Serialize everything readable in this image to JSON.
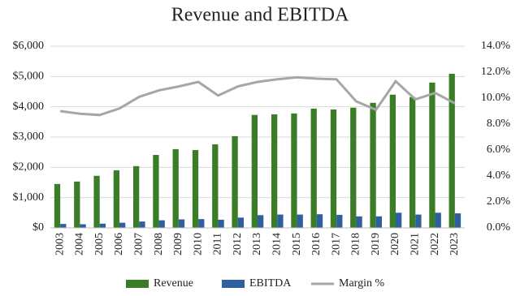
{
  "chart_data": {
    "type": "bar",
    "title": "Revenue and EBITDA",
    "categories": [
      "2003",
      "2004",
      "2005",
      "2006",
      "2007",
      "2008",
      "2009",
      "2010",
      "2011",
      "2012",
      "2013",
      "2014",
      "2015",
      "2016",
      "2017",
      "2018",
      "2019",
      "2020",
      "2021",
      "2022",
      "2023"
    ],
    "series": [
      {
        "name": "Revenue",
        "color": "#3b7d27",
        "values": [
          1450,
          1530,
          1720,
          1900,
          2040,
          2410,
          2600,
          2570,
          2760,
          3030,
          3730,
          3750,
          3780,
          3940,
          3910,
          3970,
          4130,
          4400,
          4320,
          4800,
          5090
        ]
      },
      {
        "name": "EBITDA",
        "color": "#2e5f9e",
        "values": [
          130,
          120,
          140,
          170,
          210,
          250,
          280,
          290,
          270,
          340,
          420,
          440,
          440,
          450,
          430,
          380,
          380,
          500,
          440,
          500,
          480
        ]
      },
      {
        "name": "Margin %",
        "color": "#a6a6a6",
        "type": "line",
        "axis": "y2",
        "values": [
          9.0,
          8.8,
          8.7,
          9.2,
          10.1,
          10.6,
          10.9,
          11.25,
          10.2,
          10.9,
          11.25,
          11.45,
          11.6,
          11.5,
          11.45,
          9.75,
          9.1,
          11.3,
          9.9,
          10.4,
          9.6
        ]
      }
    ],
    "ylim": [
      0,
      6000
    ],
    "yticks": [
      {
        "value": 0,
        "label": "$0"
      },
      {
        "value": 1000,
        "label": "$1,000"
      },
      {
        "value": 2000,
        "label": "$2,000"
      },
      {
        "value": 3000,
        "label": "$3,000"
      },
      {
        "value": 4000,
        "label": "$4,000"
      },
      {
        "value": 5000,
        "label": "$5,000"
      },
      {
        "value": 6000,
        "label": "$6,000"
      }
    ],
    "y2lim": [
      0,
      14
    ],
    "y2ticks": [
      {
        "value": 0,
        "label": "0.0%"
      },
      {
        "value": 2,
        "label": "2.0%"
      },
      {
        "value": 4,
        "label": "4.0%"
      },
      {
        "value": 6,
        "label": "6.0%"
      },
      {
        "value": 8,
        "label": "8.0%"
      },
      {
        "value": 10,
        "label": "10.0%"
      },
      {
        "value": 12,
        "label": "12.0%"
      },
      {
        "value": 14,
        "label": "14.0%"
      }
    ],
    "grid": true
  }
}
